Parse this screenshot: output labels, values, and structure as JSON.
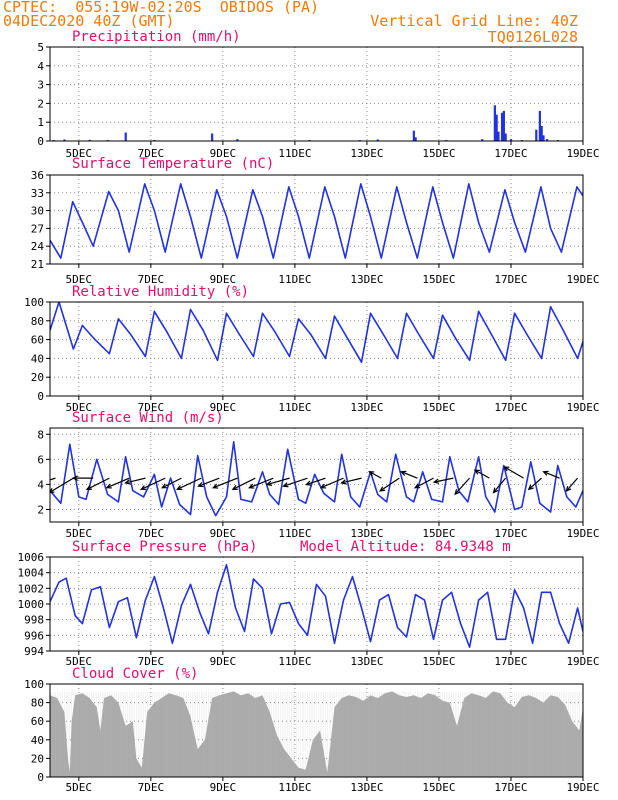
{
  "header": {
    "station": "CPTEC:  055:19W-02:20S  OBIDOS (PA)",
    "date": "04DEC2020 40Z (GMT)",
    "grid_line": "Vertical Grid Line: 40Z",
    "code": "TQ0126L028"
  },
  "colors": {
    "line": "#2233dd",
    "bar": "#2233dd",
    "cloud": "#aaaaaa",
    "title": "#e0106e",
    "header": "#f07a0a",
    "arrow": "#000000"
  },
  "chart_data": [
    {
      "id": "precip",
      "type": "bar",
      "title": "Precipitation (mm/h)",
      "x_ticks": [
        "5DEC",
        "7DEC",
        "9DEC",
        "11DEC",
        "13DEC",
        "15DEC",
        "17DEC",
        "19DEC"
      ],
      "xlim": [
        4.2,
        19.0
      ],
      "ylim": [
        0,
        5
      ],
      "y_ticks": [
        0,
        1,
        2,
        3,
        4,
        5
      ],
      "grid": true,
      "x": [
        4.3,
        4.6,
        5.3,
        5.8,
        6.3,
        7.1,
        8.7,
        9.4,
        11.4,
        12.8,
        13.3,
        14.3,
        14.35,
        15.2,
        16.2,
        16.55,
        16.6,
        16.65,
        16.75,
        16.8,
        16.85,
        17.0,
        17.3,
        17.7,
        17.8,
        17.85,
        17.9,
        18.0,
        18.3
      ],
      "values": [
        0.05,
        0.08,
        0.06,
        0.05,
        0.45,
        0.05,
        0.4,
        0.1,
        0.05,
        0.05,
        0.08,
        0.55,
        0.2,
        0.05,
        0.1,
        1.9,
        1.4,
        0.5,
        1.5,
        1.6,
        0.4,
        0.1,
        0.05,
        0.6,
        1.6,
        0.8,
        0.3,
        0.1,
        0.05
      ]
    },
    {
      "id": "temp",
      "type": "line",
      "title": "Surface Temperature (nC)",
      "x_ticks": [
        "5DEC",
        "7DEC",
        "9DEC",
        "11DEC",
        "13DEC",
        "15DEC",
        "17DEC",
        "19DEC"
      ],
      "xlim": [
        4.2,
        19.0
      ],
      "ylim": [
        21,
        36
      ],
      "y_ticks": [
        21,
        24,
        27,
        30,
        33,
        36
      ],
      "grid": true,
      "x": [
        4.2,
        4.5,
        4.83,
        5.1,
        5.4,
        5.83,
        6.1,
        6.4,
        6.83,
        7.1,
        7.4,
        7.83,
        8.1,
        8.4,
        8.83,
        9.1,
        9.4,
        9.83,
        10.1,
        10.4,
        10.83,
        11.1,
        11.4,
        11.83,
        12.1,
        12.4,
        12.83,
        13.1,
        13.4,
        13.83,
        14.1,
        14.4,
        14.83,
        15.1,
        15.4,
        15.83,
        16.1,
        16.4,
        16.83,
        17.1,
        17.4,
        17.83,
        18.1,
        18.4,
        18.83,
        19.0
      ],
      "values": [
        25,
        22,
        31.5,
        28,
        24,
        33.2,
        30,
        23,
        34.5,
        30,
        23,
        34.5,
        29,
        22,
        33.5,
        29,
        22,
        33.5,
        29,
        22,
        34,
        29,
        22,
        34,
        29,
        22,
        34.5,
        29,
        22,
        34,
        28,
        22,
        34,
        28,
        22,
        34.5,
        28,
        23,
        33.5,
        28,
        23,
        34,
        27,
        23,
        34,
        32.5
      ]
    },
    {
      "id": "rh",
      "type": "line",
      "title": "Relative Humidity (%)",
      "x_ticks": [
        "5DEC",
        "7DEC",
        "9DEC",
        "11DEC",
        "13DEC",
        "15DEC",
        "17DEC",
        "19DEC"
      ],
      "xlim": [
        4.2,
        19.0
      ],
      "ylim": [
        0,
        100
      ],
      "y_ticks": [
        0,
        20,
        40,
        60,
        80,
        100
      ],
      "grid": true,
      "x": [
        4.2,
        4.45,
        4.85,
        5.1,
        5.45,
        5.85,
        6.1,
        6.45,
        6.85,
        7.1,
        7.45,
        7.85,
        8.1,
        8.45,
        8.85,
        9.1,
        9.45,
        9.85,
        10.1,
        10.45,
        10.85,
        11.1,
        11.45,
        11.85,
        12.1,
        12.45,
        12.85,
        13.1,
        13.45,
        13.85,
        14.1,
        14.45,
        14.85,
        15.1,
        15.45,
        15.85,
        16.1,
        16.45,
        16.85,
        17.1,
        17.45,
        17.85,
        18.1,
        18.45,
        18.85,
        19.0
      ],
      "values": [
        70,
        100,
        50,
        75,
        60,
        45,
        82,
        65,
        42,
        90,
        68,
        40,
        92,
        70,
        38,
        88,
        66,
        42,
        88,
        68,
        42,
        82,
        65,
        40,
        85,
        62,
        36,
        88,
        66,
        40,
        88,
        65,
        40,
        86,
        62,
        38,
        90,
        66,
        38,
        88,
        65,
        40,
        95,
        70,
        40,
        58
      ]
    },
    {
      "id": "wind",
      "type": "line",
      "title": "Surface Wind (m/s)",
      "x_ticks": [
        "5DEC",
        "7DEC",
        "9DEC",
        "11DEC",
        "13DEC",
        "15DEC",
        "17DEC",
        "19DEC"
      ],
      "xlim": [
        4.2,
        19.0
      ],
      "ylim": [
        1,
        8.5
      ],
      "y_ticks": [
        2,
        4,
        6,
        8
      ],
      "grid": true,
      "x": [
        4.2,
        4.5,
        4.75,
        5.0,
        5.2,
        5.5,
        5.8,
        6.1,
        6.3,
        6.5,
        6.8,
        7.1,
        7.3,
        7.55,
        7.8,
        8.1,
        8.3,
        8.55,
        8.8,
        9.1,
        9.3,
        9.5,
        9.8,
        10.1,
        10.3,
        10.55,
        10.8,
        11.1,
        11.3,
        11.55,
        11.8,
        12.1,
        12.3,
        12.55,
        12.8,
        13.1,
        13.3,
        13.55,
        13.8,
        14.1,
        14.3,
        14.55,
        14.8,
        15.1,
        15.3,
        15.55,
        15.8,
        16.1,
        16.3,
        16.55,
        16.8,
        17.1,
        17.3,
        17.55,
        17.8,
        18.1,
        18.3,
        18.55,
        18.8,
        19.0
      ],
      "values": [
        3.5,
        2.5,
        7.2,
        3.0,
        2.8,
        6.0,
        3.2,
        2.6,
        6.2,
        3.5,
        3.0,
        4.8,
        2.2,
        4.5,
        2.4,
        1.6,
        6.3,
        3.0,
        1.5,
        3.0,
        7.4,
        2.8,
        2.6,
        5.0,
        3.2,
        2.4,
        6.8,
        2.8,
        2.5,
        4.8,
        3.3,
        2.6,
        6.4,
        3.0,
        2.2,
        5.0,
        3.2,
        2.6,
        6.4,
        3.0,
        2.6,
        5.0,
        2.8,
        2.6,
        6.2,
        3.5,
        2.6,
        6.2,
        3.0,
        1.8,
        5.5,
        2.0,
        2.2,
        5.8,
        2.5,
        1.8,
        5.5,
        3.0,
        2.2,
        3.5
      ],
      "vector_x": [
        4.35,
        4.85,
        5.4,
        5.85,
        6.4,
        6.85,
        7.4,
        7.85,
        8.4,
        8.9,
        9.4,
        9.9,
        10.4,
        10.85,
        11.35,
        11.85,
        12.35,
        12.85,
        13.4,
        13.9,
        14.4,
        14.85,
        15.4,
        15.85,
        16.4,
        16.85,
        17.35,
        17.85,
        18.35,
        18.85
      ],
      "vector_u": [
        -2.5,
        -3.0,
        -2.5,
        -2.8,
        -2.8,
        -2.5,
        -3.0,
        -2.4,
        -3.0,
        -2.6,
        -3.0,
        -2.8,
        -3.0,
        -2.8,
        -3.0,
        -2.4,
        -2.8,
        -2.5,
        -1.5,
        -2.4,
        -2.0,
        -2.3,
        -2.4,
        -1.8,
        -1.8,
        -1.5,
        -2.4,
        -1.6,
        -2.0,
        -1.4
      ],
      "vector_v": [
        -0.8,
        -1.8,
        0.0,
        -1.4,
        -1.2,
        -0.6,
        -1.4,
        -1.2,
        -1.4,
        -1.0,
        -1.2,
        -1.4,
        -1.2,
        -0.8,
        -1.0,
        -0.8,
        -1.2,
        -0.6,
        0.8,
        -1.6,
        0.8,
        -1.2,
        -0.5,
        -2.0,
        1.0,
        -1.8,
        1.4,
        -1.4,
        0.8,
        -1.6
      ]
    },
    {
      "id": "pres",
      "type": "line",
      "title": "Surface Pressure (hPa)",
      "annotation": "Model Altitude: 84.9348 m",
      "x_ticks": [
        "5DEC",
        "7DEC",
        "9DEC",
        "11DEC",
        "13DEC",
        "15DEC",
        "17DEC",
        "19DEC"
      ],
      "xlim": [
        4.2,
        19.0
      ],
      "ylim": [
        994,
        1006
      ],
      "y_ticks": [
        994,
        996,
        998,
        1000,
        1002,
        1004,
        1006
      ],
      "grid": true,
      "x": [
        4.2,
        4.45,
        4.65,
        4.9,
        5.1,
        5.35,
        5.6,
        5.85,
        6.1,
        6.35,
        6.6,
        6.85,
        7.1,
        7.35,
        7.6,
        7.85,
        8.1,
        8.35,
        8.6,
        8.85,
        9.1,
        9.35,
        9.6,
        9.85,
        10.1,
        10.35,
        10.6,
        10.85,
        11.1,
        11.35,
        11.6,
        11.85,
        12.1,
        12.35,
        12.6,
        12.85,
        13.1,
        13.35,
        13.6,
        13.85,
        14.1,
        14.35,
        14.6,
        14.85,
        15.1,
        15.35,
        15.6,
        15.85,
        16.1,
        16.35,
        16.6,
        16.85,
        17.1,
        17.35,
        17.6,
        17.85,
        18.1,
        18.35,
        18.6,
        18.85,
        19.0
      ],
      "values": [
        1000.3,
        1002.8,
        1003.3,
        998.5,
        997.5,
        1001.8,
        1002.2,
        997.0,
        1000.3,
        1000.8,
        995.7,
        1000.5,
        1003.5,
        999.5,
        995.0,
        999.8,
        1002.5,
        999.0,
        996.2,
        1001.5,
        1005.0,
        999.5,
        996.5,
        1003.2,
        1002.0,
        996.2,
        1000.0,
        1000.2,
        997.5,
        996.0,
        1002.5,
        1001.0,
        995.0,
        1000.5,
        1003.5,
        999.5,
        995.2,
        1000.5,
        1001.2,
        997.0,
        995.8,
        1001.2,
        1000.5,
        995.5,
        1000.5,
        1001.5,
        997.5,
        994.5,
        1000.5,
        1001.5,
        995.5,
        995.5,
        1001.8,
        999.5,
        995.0,
        1001.5,
        1001.5,
        997.5,
        995.0,
        999.5,
        996.5
      ]
    },
    {
      "id": "cloud",
      "type": "area",
      "title": "Cloud Cover (%)",
      "x_ticks": [
        "5DEC",
        "7DEC",
        "9DEC",
        "11DEC",
        "13DEC",
        "15DEC",
        "17DEC",
        "19DEC"
      ],
      "xlim": [
        4.2,
        19.0
      ],
      "ylim": [
        0,
        100
      ],
      "y_ticks": [
        0,
        20,
        40,
        60,
        80,
        100
      ],
      "grid": true,
      "x": [
        4.2,
        4.4,
        4.6,
        4.7,
        4.75,
        4.8,
        4.9,
        5.1,
        5.3,
        5.5,
        5.6,
        5.7,
        5.9,
        6.1,
        6.3,
        6.5,
        6.6,
        6.75,
        6.9,
        7.1,
        7.3,
        7.5,
        7.7,
        7.9,
        8.1,
        8.3,
        8.5,
        8.7,
        8.9,
        9.1,
        9.3,
        9.5,
        9.7,
        9.9,
        10.1,
        10.3,
        10.5,
        10.7,
        10.9,
        11.1,
        11.3,
        11.5,
        11.7,
        11.9,
        12.1,
        12.3,
        12.5,
        12.7,
        12.9,
        13.1,
        13.3,
        13.5,
        13.7,
        13.9,
        14.1,
        14.3,
        14.5,
        14.7,
        14.9,
        15.1,
        15.3,
        15.5,
        15.7,
        15.9,
        16.1,
        16.3,
        16.5,
        16.7,
        16.9,
        17.1,
        17.3,
        17.5,
        17.7,
        17.9,
        18.1,
        18.3,
        18.5,
        18.7,
        18.9,
        19.0
      ],
      "values": [
        88,
        85,
        70,
        20,
        5,
        60,
        88,
        90,
        85,
        75,
        50,
        85,
        88,
        80,
        55,
        60,
        20,
        10,
        70,
        80,
        85,
        90,
        88,
        85,
        65,
        30,
        40,
        85,
        88,
        90,
        92,
        88,
        90,
        85,
        88,
        70,
        45,
        30,
        20,
        10,
        8,
        40,
        50,
        5,
        75,
        85,
        88,
        86,
        82,
        88,
        85,
        90,
        92,
        88,
        86,
        88,
        85,
        90,
        88,
        82,
        80,
        55,
        85,
        90,
        88,
        85,
        92,
        90,
        80,
        75,
        86,
        88,
        85,
        80,
        88,
        86,
        78,
        60,
        50,
        75
      ]
    }
  ]
}
